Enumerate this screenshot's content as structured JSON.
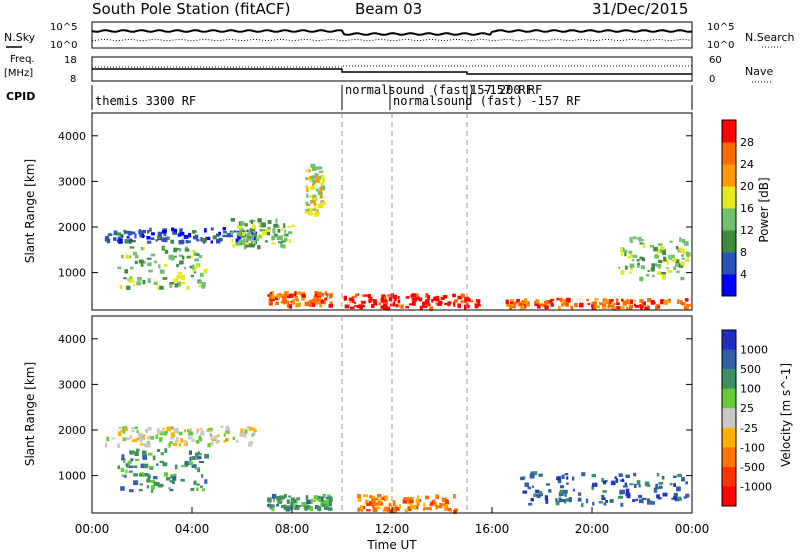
{
  "header": {
    "station": "South Pole Station (fitACF)",
    "beam": "Beam 03",
    "date": "31/Dec/2015"
  },
  "noise_panel": {
    "left_label": "N.Sky",
    "right_label": "N.Search",
    "left_top": "10^5",
    "left_bottom": "10^0",
    "right_top": "10^5",
    "right_bottom": "10^0"
  },
  "freq_panel": {
    "left_label_1": "Freq.",
    "left_label_2": "[MHz]",
    "left_top": "18",
    "left_bottom": "8",
    "right_label": "Nave",
    "right_top": "60",
    "right_bottom": "0"
  },
  "cpid_panel": {
    "label": "CPID",
    "entries": [
      {
        "text": "themis 3300 RF"
      },
      {
        "text": "normalsound (fast) -157 RF"
      },
      {
        "text": "normalsound (fast) -157 RF"
      },
      {
        "text": "157 200 RF"
      }
    ]
  },
  "axes": {
    "ylabel": "Slant Range [km]",
    "xlabel": "Time UT",
    "x_ticks": [
      "00:00",
      "04:00",
      "08:00",
      "12:00",
      "16:00",
      "20:00",
      "00:00"
    ],
    "y_ticks": [
      "1000",
      "2000",
      "3000",
      "4000"
    ]
  },
  "power_scale": {
    "label": "Power [dB]",
    "ticks": [
      "4",
      "8",
      "12",
      "16",
      "20",
      "24",
      "28"
    ],
    "colors": [
      "#0000ff",
      "#2a52b8",
      "#3f8a3f",
      "#6fbf6f",
      "#e8e820",
      "#ff9900",
      "#ff6a00",
      "#ff0000"
    ]
  },
  "velocity_scale": {
    "label": "Velocity [m s^-1]",
    "ticks": [
      "1000",
      "500",
      "100",
      "25",
      "-25",
      "-100",
      "-500",
      "-1000"
    ],
    "colors": [
      "#1c2fbf",
      "#2f5fa8",
      "#3d8f5f",
      "#66cc33",
      "#c8c8c8",
      "#ffb000",
      "#ff7700",
      "#ff3300",
      "#ff0000"
    ]
  },
  "chart_data": {
    "type": "heatmap",
    "title": "South Pole Station (fitACF) Beam 03 31/Dec/2015",
    "xlabel": "Time UT",
    "ylabel": "Slant Range [km]",
    "xlim": [
      0,
      24
    ],
    "ylim": [
      180,
      4500
    ],
    "mode_changes_hours": [
      10,
      12,
      15
    ],
    "power_features": [
      {
        "t0": 0.5,
        "t1": 6.5,
        "r0": 1700,
        "r1": 2000,
        "level": 1
      },
      {
        "t0": 1.0,
        "t1": 4.5,
        "r0": 700,
        "r1": 1600,
        "level": 3
      },
      {
        "t0": 5.5,
        "t1": 8.0,
        "r0": 1600,
        "r1": 2200,
        "level": 3
      },
      {
        "t0": 7.0,
        "t1": 9.5,
        "r0": 300,
        "r1": 600,
        "level": 6
      },
      {
        "t0": 10.0,
        "t1": 15.5,
        "r0": 250,
        "r1": 550,
        "level": 7
      },
      {
        "t0": 16.5,
        "t1": 23.8,
        "r0": 250,
        "r1": 450,
        "level": 6
      },
      {
        "t0": 21.0,
        "t1": 23.8,
        "r0": 900,
        "r1": 1800,
        "level": 3
      },
      {
        "t0": 8.5,
        "t1": 9.2,
        "r0": 2300,
        "r1": 3400,
        "level": 4
      }
    ],
    "velocity_features": [
      {
        "t0": 0.5,
        "t1": 6.5,
        "r0": 1700,
        "r1": 2100,
        "level": 4
      },
      {
        "t0": 1.0,
        "t1": 4.5,
        "r0": 700,
        "r1": 1600,
        "level": 2
      },
      {
        "t0": 10.5,
        "t1": 14.5,
        "r0": 250,
        "r1": 600,
        "level": 6
      },
      {
        "t0": 17.0,
        "t1": 23.8,
        "r0": 400,
        "r1": 1100,
        "level": 1
      },
      {
        "t0": 7.0,
        "t1": 9.5,
        "r0": 300,
        "r1": 600,
        "level": 2
      }
    ]
  }
}
